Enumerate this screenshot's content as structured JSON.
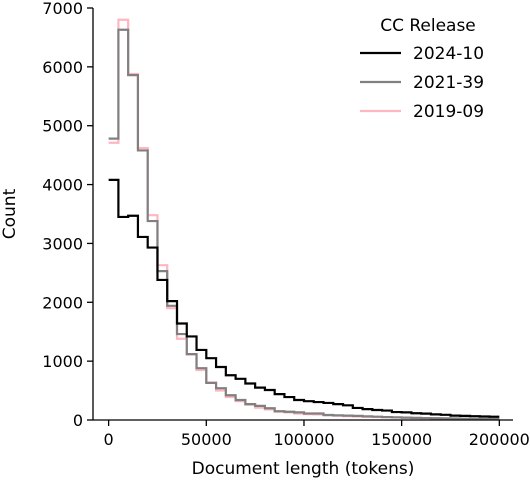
{
  "chart_data": {
    "type": "line",
    "subtype": "step-histogram",
    "xlabel": "Document length (tokens)",
    "ylabel": "Count",
    "xlim": [
      -8000,
      207000
    ],
    "ylim": [
      0,
      7000
    ],
    "x_ticks": [
      0,
      50000,
      100000,
      150000,
      200000
    ],
    "x_tick_labels": [
      "0",
      "50000",
      "100000",
      "150000",
      "200000"
    ],
    "y_ticks": [
      0,
      1000,
      2000,
      3000,
      4000,
      5000,
      6000,
      7000
    ],
    "y_tick_labels": [
      "0",
      "1000",
      "2000",
      "3000",
      "4000",
      "5000",
      "6000",
      "7000"
    ],
    "bin_edges": [
      0,
      5000,
      10000,
      15000,
      20000,
      25000,
      30000,
      35000,
      40000,
      45000,
      50000,
      55000,
      60000,
      65000,
      70000,
      75000,
      80000,
      85000,
      90000,
      95000,
      100000,
      105000,
      110000,
      115000,
      120000,
      125000,
      130000,
      135000,
      140000,
      145000,
      150000,
      155000,
      160000,
      165000,
      170000,
      175000,
      180000,
      185000,
      190000,
      195000,
      200000
    ],
    "legend_title": "CC Release",
    "legend_position": "top-right",
    "grid": false,
    "series": [
      {
        "name": "2024-10",
        "color": "#000000",
        "values": [
          4080,
          3450,
          3470,
          3110,
          2930,
          2380,
          2020,
          1640,
          1420,
          1190,
          1050,
          900,
          760,
          700,
          620,
          550,
          510,
          440,
          390,
          340,
          320,
          305,
          290,
          270,
          250,
          205,
          185,
          170,
          160,
          135,
          130,
          115,
          108,
          95,
          88,
          75,
          70,
          65,
          60,
          55
        ]
      },
      {
        "name": "2021-39",
        "color": "#808080",
        "values": [
          4780,
          6630,
          5860,
          4580,
          3380,
          2530,
          1940,
          1460,
          1120,
          880,
          630,
          540,
          420,
          340,
          270,
          240,
          200,
          150,
          140,
          130,
          110,
          110,
          85,
          80,
          75,
          70,
          62,
          56,
          50,
          46,
          40,
          36,
          33,
          30,
          28,
          25,
          22,
          20,
          18,
          16
        ]
      },
      {
        "name": "2019-09",
        "color": "#ffb6c1",
        "values": [
          4710,
          6800,
          5880,
          4620,
          3480,
          2630,
          1900,
          1380,
          1110,
          850,
          640,
          500,
          390,
          320,
          260,
          210,
          180,
          140,
          130,
          110,
          100,
          95,
          80,
          72,
          66,
          60,
          55,
          50,
          46,
          42,
          38,
          34,
          31,
          28,
          26,
          24,
          21,
          19,
          17,
          15
        ]
      }
    ]
  }
}
